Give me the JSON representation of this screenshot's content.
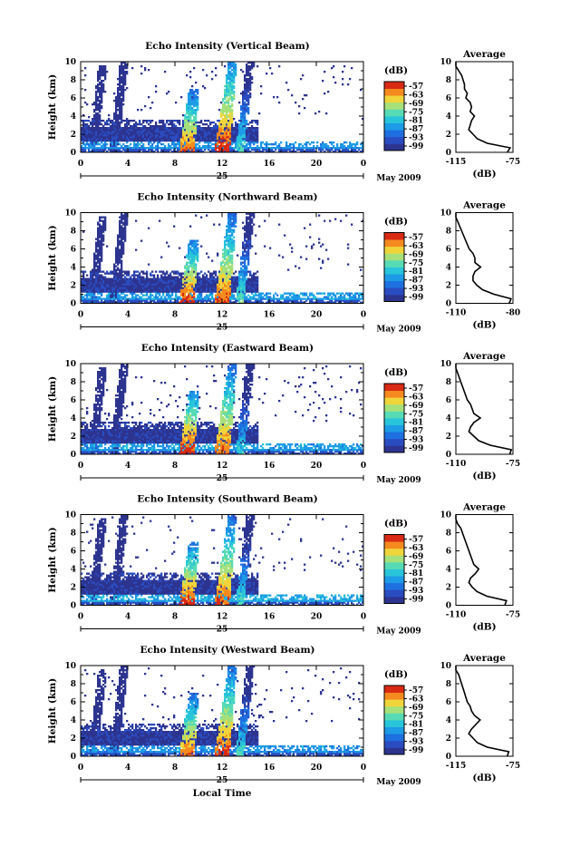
{
  "colors": {
    "colorbar_stops": [
      "#2d3490",
      "#2a4cc1",
      "#1e6fe0",
      "#1d9be6",
      "#28c4da",
      "#57dbb5",
      "#a6e07a",
      "#f0d53a",
      "#f58a1f",
      "#d92a14"
    ],
    "background": "#ffffff",
    "axis": "#000000",
    "profile_line": "#000000"
  },
  "figure": {
    "xlabel": "Local Time",
    "date_label": "May 2009",
    "day_label": "25",
    "x_ticks": [
      "0",
      "4",
      "8",
      "12",
      "16",
      "20",
      "0"
    ],
    "y_ticks": [
      "0",
      "2",
      "4",
      "6",
      "8",
      "10"
    ],
    "ylabel": "Height (km)",
    "colorbar_unit": "(dB)",
    "colorbar_ticks": [
      "-57",
      "-63",
      "-69",
      "-75",
      "-81",
      "-87",
      "-93",
      "-99"
    ],
    "avg_title": "Average",
    "avg_xlabel": "(dB)",
    "avg_y_ticks": [
      "0",
      "2",
      "4",
      "6",
      "8",
      "10"
    ]
  },
  "panels": [
    {
      "title": "Echo Intensity (Vertical Beam)",
      "avg_x_ticks": [
        "-115",
        "-75"
      ]
    },
    {
      "title": "Echo Intensity (Northward Beam)",
      "avg_x_ticks": [
        "-110",
        "-80"
      ]
    },
    {
      "title": "Echo Intensity (Eastward Beam)",
      "avg_x_ticks": [
        "-110",
        "-75"
      ]
    },
    {
      "title": "Echo Intensity (Southward Beam)",
      "avg_x_ticks": [
        "-110",
        "-75"
      ]
    },
    {
      "title": "Echo Intensity (Westward Beam)",
      "avg_x_ticks": [
        "-115",
        "-75"
      ]
    }
  ],
  "chart_data": [
    {
      "type": "heatmap",
      "title": "Echo Intensity (Vertical Beam)",
      "xlabel": "",
      "ylabel": "Height (km)",
      "xlim": [
        0,
        24
      ],
      "ylim": [
        0,
        10
      ],
      "x_unit": "Local Time (h), 25 May 2009",
      "z_unit": "dB",
      "zlim": [
        -99,
        -57
      ],
      "features": [
        {
          "kind": "layer",
          "t_start": 0,
          "t_end": 24,
          "h_low": 0.4,
          "h_high": 1.2,
          "level": -85
        },
        {
          "kind": "layer",
          "t_start": 0,
          "t_end": 15,
          "h_low": 1.2,
          "h_high": 3.5,
          "level": -96
        },
        {
          "kind": "plume",
          "t_center": 1.0,
          "h_top": 9.5,
          "level": -91
        },
        {
          "kind": "plume",
          "t_center": 2.8,
          "h_top": 10,
          "level": -94
        },
        {
          "kind": "plume",
          "t_center": 9.0,
          "h_top": 7.0,
          "level": -60
        },
        {
          "kind": "plume",
          "t_center": 12.0,
          "h_top": 10,
          "level": -57
        },
        {
          "kind": "plume",
          "t_center": 13.5,
          "h_top": 10,
          "level": -75
        }
      ],
      "average_profile": {
        "xlim": [
          -115,
          -75
        ],
        "height": [
          0,
          0.5,
          1,
          1.5,
          2,
          2.5,
          3,
          3.5,
          4,
          4.5,
          5,
          5.5,
          6,
          6.5,
          7,
          7.5,
          8,
          8.5,
          9,
          9.5,
          10
        ],
        "dB": [
          -79,
          -77,
          -93,
          -100,
          -103,
          -106,
          -105,
          -104,
          -102,
          -105,
          -104,
          -105,
          -108,
          -107,
          -109,
          -109,
          -110,
          -111,
          -113,
          -115,
          -115
        ]
      }
    },
    {
      "type": "heatmap",
      "title": "Echo Intensity (Northward Beam)",
      "xlabel": "",
      "ylabel": "Height (km)",
      "xlim": [
        0,
        24
      ],
      "ylim": [
        0,
        10
      ],
      "x_unit": "Local Time (h), 25 May 2009",
      "z_unit": "dB",
      "zlim": [
        -99,
        -57
      ],
      "features": [
        {
          "kind": "layer",
          "t_start": 0,
          "t_end": 24,
          "h_low": 0.4,
          "h_high": 1.2,
          "level": -84
        },
        {
          "kind": "layer",
          "t_start": 0,
          "t_end": 15,
          "h_low": 1.2,
          "h_high": 3.5,
          "level": -96
        },
        {
          "kind": "plume",
          "t_center": 1.0,
          "h_top": 9.5,
          "level": -91
        },
        {
          "kind": "plume",
          "t_center": 2.8,
          "h_top": 10,
          "level": -94
        },
        {
          "kind": "plume",
          "t_center": 9.0,
          "h_top": 7.0,
          "level": -58
        },
        {
          "kind": "plume",
          "t_center": 12.0,
          "h_top": 10,
          "level": -60
        },
        {
          "kind": "plume",
          "t_center": 13.5,
          "h_top": 10,
          "level": -75
        }
      ],
      "average_profile": {
        "xlim": [
          -110,
          -80
        ],
        "height": [
          0,
          0.5,
          1,
          1.5,
          2,
          2.5,
          3,
          3.5,
          4,
          4.5,
          5,
          5.5,
          6,
          6.5,
          7,
          7.5,
          8,
          8.5,
          9,
          9.5,
          10
        ],
        "dB": [
          -82,
          -81,
          -90,
          -96,
          -99,
          -101,
          -101,
          -100,
          -97,
          -100,
          -100,
          -101,
          -103,
          -104,
          -105,
          -106,
          -107,
          -108,
          -109,
          -110,
          -110
        ]
      }
    },
    {
      "type": "heatmap",
      "title": "Echo Intensity (Eastward Beam)",
      "xlabel": "",
      "ylabel": "Height (km)",
      "xlim": [
        0,
        24
      ],
      "ylim": [
        0,
        10
      ],
      "x_unit": "Local Time (h), 25 May 2009",
      "z_unit": "dB",
      "zlim": [
        -99,
        -57
      ],
      "features": [
        {
          "kind": "layer",
          "t_start": 0,
          "t_end": 24,
          "h_low": 0.4,
          "h_high": 1.2,
          "level": -84
        },
        {
          "kind": "layer",
          "t_start": 0,
          "t_end": 15,
          "h_low": 1.2,
          "h_high": 3.5,
          "level": -96
        },
        {
          "kind": "plume",
          "t_center": 1.0,
          "h_top": 9.5,
          "level": -91
        },
        {
          "kind": "plume",
          "t_center": 2.8,
          "h_top": 10,
          "level": -94
        },
        {
          "kind": "plume",
          "t_center": 9.0,
          "h_top": 7.0,
          "level": -57
        },
        {
          "kind": "plume",
          "t_center": 12.0,
          "h_top": 10,
          "level": -60
        },
        {
          "kind": "plume",
          "t_center": 13.5,
          "h_top": 10,
          "level": -78
        }
      ],
      "average_profile": {
        "xlim": [
          -110,
          -75
        ],
        "height": [
          0,
          0.5,
          1,
          1.5,
          2,
          2.5,
          3,
          3.5,
          4,
          4.5,
          5,
          5.5,
          6,
          6.5,
          7,
          7.5,
          8,
          8.5,
          9,
          9.5,
          10
        ],
        "dB": [
          -77,
          -76,
          -89,
          -96,
          -99,
          -102,
          -101,
          -99,
          -95,
          -99,
          -100,
          -101,
          -103,
          -104,
          -105,
          -106,
          -107,
          -108,
          -109,
          -110,
          -110
        ]
      }
    },
    {
      "type": "heatmap",
      "title": "Echo Intensity (Southward Beam)",
      "xlabel": "",
      "ylabel": "Height (km)",
      "xlim": [
        0,
        24
      ],
      "ylim": [
        0,
        10
      ],
      "x_unit": "Local Time (h), 25 May 2009",
      "z_unit": "dB",
      "zlim": [
        -99,
        -57
      ],
      "features": [
        {
          "kind": "layer",
          "t_start": 0,
          "t_end": 24,
          "h_low": 0.4,
          "h_high": 1.2,
          "level": -83
        },
        {
          "kind": "layer",
          "t_start": 0,
          "t_end": 15,
          "h_low": 1.2,
          "h_high": 3.5,
          "level": -96
        },
        {
          "kind": "plume",
          "t_center": 1.0,
          "h_top": 9.5,
          "level": -91
        },
        {
          "kind": "plume",
          "t_center": 2.8,
          "h_top": 10,
          "level": -94
        },
        {
          "kind": "plume",
          "t_center": 9.0,
          "h_top": 7.0,
          "level": -58
        },
        {
          "kind": "plume",
          "t_center": 12.0,
          "h_top": 10,
          "level": -60
        },
        {
          "kind": "plume",
          "t_center": 13.5,
          "h_top": 10,
          "level": -76
        }
      ],
      "average_profile": {
        "xlim": [
          -110,
          -75
        ],
        "height": [
          0,
          0.5,
          1,
          1.5,
          2,
          2.5,
          3,
          3.5,
          4,
          4.5,
          5,
          5.5,
          6,
          6.5,
          7,
          7.5,
          8,
          8.5,
          9,
          9.5,
          10
        ],
        "dB": [
          -80,
          -79,
          -91,
          -97,
          -100,
          -102,
          -101,
          -98,
          -96,
          -99,
          -100,
          -101,
          -102,
          -103,
          -104,
          -105,
          -106,
          -107,
          -109,
          -110,
          -110
        ]
      }
    },
    {
      "type": "heatmap",
      "title": "Echo Intensity (Westward Beam)",
      "xlabel": "Local Time",
      "ylabel": "Height (km)",
      "xlim": [
        0,
        24
      ],
      "ylim": [
        0,
        10
      ],
      "x_unit": "Local Time (h), 25 May 2009",
      "z_unit": "dB",
      "zlim": [
        -99,
        -57
      ],
      "features": [
        {
          "kind": "layer",
          "t_start": 0,
          "t_end": 24,
          "h_low": 0.4,
          "h_high": 1.2,
          "level": -85
        },
        {
          "kind": "layer",
          "t_start": 0,
          "t_end": 15,
          "h_low": 1.2,
          "h_high": 3.5,
          "level": -96
        },
        {
          "kind": "plume",
          "t_center": 1.0,
          "h_top": 9.5,
          "level": -91
        },
        {
          "kind": "plume",
          "t_center": 2.8,
          "h_top": 10,
          "level": -94
        },
        {
          "kind": "plume",
          "t_center": 9.0,
          "h_top": 7.0,
          "level": -60
        },
        {
          "kind": "plume",
          "t_center": 12.0,
          "h_top": 10,
          "level": -59
        },
        {
          "kind": "plume",
          "t_center": 13.5,
          "h_top": 10,
          "level": -76
        }
      ],
      "average_profile": {
        "xlim": [
          -115,
          -75
        ],
        "height": [
          0,
          0.5,
          1,
          1.5,
          2,
          2.5,
          3,
          3.5,
          4,
          4.5,
          5,
          5.5,
          6,
          6.5,
          7,
          7.5,
          8,
          8.5,
          9,
          9.5,
          10
        ],
        "dB": [
          -79,
          -78,
          -93,
          -100,
          -103,
          -106,
          -104,
          -101,
          -98,
          -102,
          -104,
          -105,
          -107,
          -108,
          -109,
          -110,
          -111,
          -112,
          -113,
          -115,
          -115
        ]
      }
    }
  ]
}
